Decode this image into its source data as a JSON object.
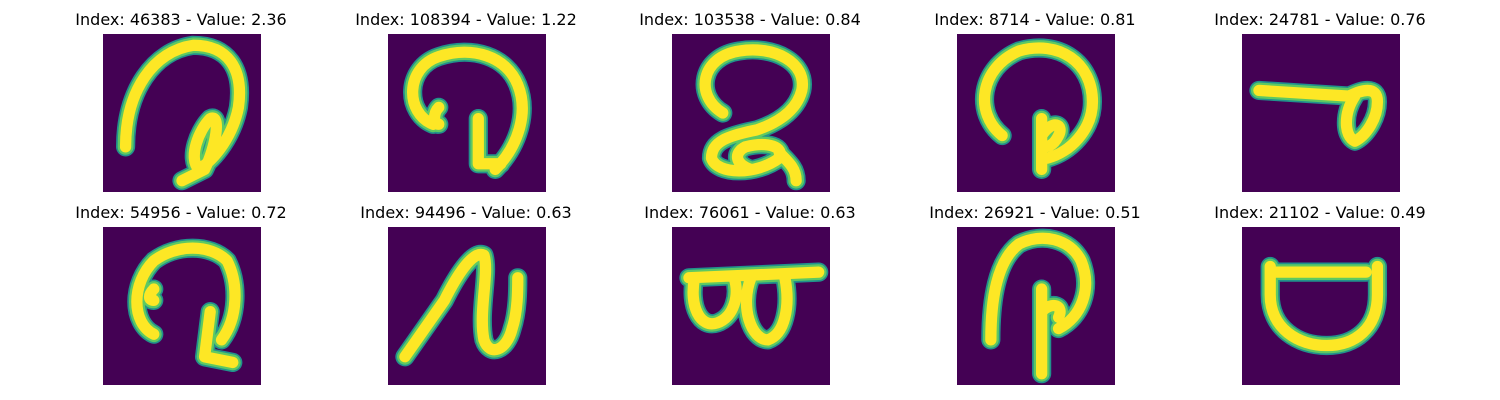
{
  "colors": {
    "background": "#440154",
    "stroke_core": "#fde725",
    "stroke_edge": "#21918c",
    "stroke_mid": "#5ec962"
  },
  "panels": [
    {
      "index_label": "Index: 46383",
      "value_label": "Value: 2.36",
      "title": "Index: 46383 - Value: 2.36"
    },
    {
      "index_label": "Index: 108394",
      "value_label": "Value: 1.22",
      "title": "Index: 108394 - Value: 1.22"
    },
    {
      "index_label": "Index: 103538",
      "value_label": "Value: 0.84",
      "title": "Index: 103538 - Value: 0.84"
    },
    {
      "index_label": "Index: 8714",
      "value_label": "Value: 0.81",
      "title": "Index: 8714 - Value: 0.81"
    },
    {
      "index_label": "Index: 24781",
      "value_label": "Value: 0.76",
      "title": "Index: 24781 - Value: 0.76"
    },
    {
      "index_label": "Index: 54956",
      "value_label": "Value: 0.72",
      "title": "Index: 54956 - Value: 0.72"
    },
    {
      "index_label": "Index: 94496",
      "value_label": "Value: 0.63",
      "title": "Index: 94496 - Value: 0.63"
    },
    {
      "index_label": "Index: 76061",
      "value_label": "Value: 0.63",
      "title": "Index: 76061 - Value: 0.63"
    },
    {
      "index_label": "Index: 26921",
      "value_label": "Value: 0.51",
      "title": "Index: 26921 - Value: 0.51"
    },
    {
      "index_label": "Index: 21102",
      "value_label": "Value: 0.49",
      "title": "Index: 21102 - Value: 0.49"
    }
  ]
}
